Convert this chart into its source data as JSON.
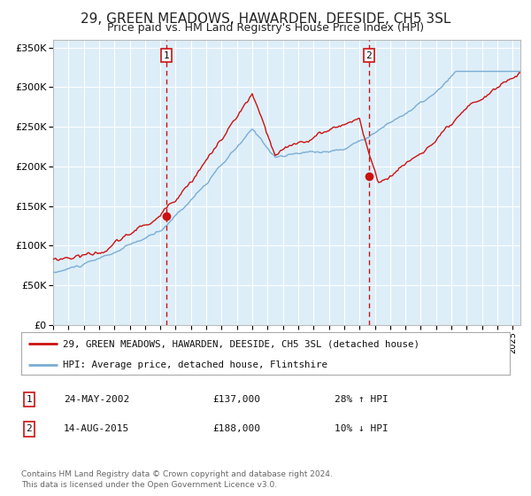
{
  "title": "29, GREEN MEADOWS, HAWARDEN, DEESIDE, CH5 3SL",
  "subtitle": "Price paid vs. HM Land Registry's House Price Index (HPI)",
  "title_fontsize": 11,
  "subtitle_fontsize": 9,
  "ylabel_ticks": [
    "£0",
    "£50K",
    "£100K",
    "£150K",
    "£200K",
    "£250K",
    "£300K",
    "£350K"
  ],
  "ytick_values": [
    0,
    50000,
    100000,
    150000,
    200000,
    250000,
    300000,
    350000
  ],
  "ylim": [
    0,
    360000
  ],
  "xlim_start": 1995.0,
  "xlim_end": 2025.5,
  "sale1_date": 2002.39,
  "sale1_price": 137000,
  "sale1_label": "1",
  "sale1_pct": "28% ↑ HPI",
  "sale1_date_str": "24-MAY-2002",
  "sale2_date": 2015.62,
  "sale2_price": 188000,
  "sale2_label": "2",
  "sale2_pct": "10% ↓ HPI",
  "sale2_date_str": "14-AUG-2015",
  "hpi_color": "#7aadd4",
  "property_color": "#cc1111",
  "sale_marker_color": "#cc1111",
  "background_color": "#ffffff",
  "plot_bg_color": "#ddeef8",
  "grid_color": "#ffffff",
  "legend_line1": "29, GREEN MEADOWS, HAWARDEN, DEESIDE, CH5 3SL (detached house)",
  "legend_line2": "HPI: Average price, detached house, Flintshire",
  "footer1": "Contains HM Land Registry data © Crown copyright and database right 2024.",
  "footer2": "This data is licensed under the Open Government Licence v3.0."
}
